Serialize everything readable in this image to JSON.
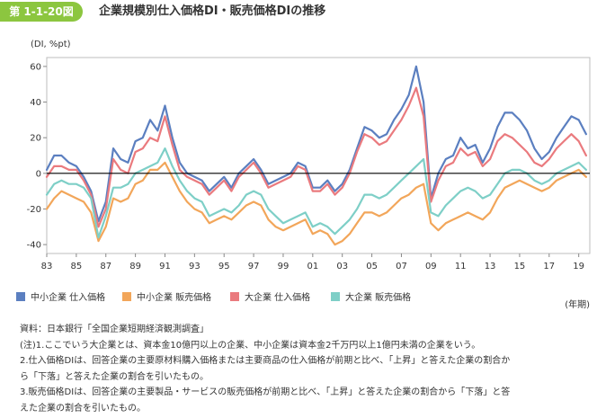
{
  "header": {
    "figure_number": "第 1-1-20図",
    "title": "企業規模別仕入価格DI・販売価格DIの推移"
  },
  "unit_label": "(DI, %pt)",
  "x_unit_label": "(年期)",
  "colors": {
    "sme_input": "#5b7fc0",
    "sme_sales": "#f2a65a",
    "large_input": "#ea7a7e",
    "large_sales": "#7ecfc7",
    "header_bg": "#8cc63f"
  },
  "chart_data": {
    "type": "line",
    "title": "企業規模別仕入価格DI・販売価格DIの推移",
    "ylabel": "(DI, %pt)",
    "xlabel": "(年期)",
    "ylim": [
      -45,
      65
    ],
    "xlim": [
      1983,
      2019.75
    ],
    "yticks": [
      -40,
      -20,
      0,
      20,
      40,
      60
    ],
    "xtick_values": [
      1983,
      1985,
      1987,
      1989,
      1991,
      1993,
      1995,
      1997,
      1999,
      2001,
      2003,
      2005,
      2007,
      2009,
      2011,
      2013,
      2015,
      2017,
      2019
    ],
    "xtick_labels": [
      "83",
      "85",
      "87",
      "89",
      "91",
      "93",
      "95",
      "97",
      "99",
      "01",
      "03",
      "05",
      "07",
      "09",
      "11",
      "13",
      "15",
      "17",
      "19"
    ],
    "grid": false,
    "legend_position": "bottom",
    "x": [
      1983.0,
      1983.5,
      1984.0,
      1984.5,
      1985.0,
      1985.5,
      1986.0,
      1986.5,
      1987.0,
      1987.5,
      1988.0,
      1988.5,
      1989.0,
      1989.5,
      1990.0,
      1990.5,
      1991.0,
      1991.5,
      1992.0,
      1992.5,
      1993.0,
      1993.5,
      1994.0,
      1994.5,
      1995.0,
      1995.5,
      1996.0,
      1996.5,
      1997.0,
      1997.5,
      1998.0,
      1998.5,
      1999.0,
      1999.5,
      2000.0,
      2000.5,
      2001.0,
      2001.5,
      2002.0,
      2002.5,
      2003.0,
      2003.5,
      2004.0,
      2004.5,
      2005.0,
      2005.5,
      2006.0,
      2006.5,
      2007.0,
      2007.5,
      2008.0,
      2008.5,
      2009.0,
      2009.5,
      2010.0,
      2010.5,
      2011.0,
      2011.5,
      2012.0,
      2012.5,
      2013.0,
      2013.5,
      2014.0,
      2014.5,
      2015.0,
      2015.5,
      2016.0,
      2016.5,
      2017.0,
      2017.5,
      2018.0,
      2018.5,
      2019.0,
      2019.5
    ],
    "series": [
      {
        "name": "中小企業 仕入価格",
        "color_key": "sme_input",
        "values": [
          2,
          10,
          10,
          6,
          4,
          -2,
          -10,
          -27,
          -16,
          14,
          8,
          6,
          18,
          20,
          30,
          24,
          38,
          20,
          6,
          0,
          -2,
          -4,
          -10,
          -6,
          -2,
          -8,
          0,
          4,
          8,
          2,
          -6,
          -4,
          -2,
          0,
          6,
          4,
          -8,
          -8,
          -4,
          -10,
          -6,
          2,
          14,
          26,
          24,
          20,
          22,
          30,
          36,
          44,
          60,
          40,
          -14,
          0,
          8,
          10,
          20,
          14,
          16,
          6,
          14,
          26,
          34,
          34,
          30,
          24,
          14,
          8,
          12,
          20,
          26,
          32,
          30,
          22
        ]
      },
      {
        "name": "中小企業 販売価格",
        "color_key": "sme_sales",
        "values": [
          -20,
          -14,
          -10,
          -12,
          -14,
          -16,
          -22,
          -38,
          -30,
          -14,
          -16,
          -14,
          -6,
          -4,
          2,
          2,
          6,
          -2,
          -10,
          -16,
          -20,
          -22,
          -28,
          -26,
          -24,
          -26,
          -22,
          -18,
          -16,
          -18,
          -26,
          -30,
          -32,
          -30,
          -28,
          -26,
          -34,
          -32,
          -34,
          -40,
          -38,
          -34,
          -28,
          -22,
          -22,
          -24,
          -22,
          -18,
          -14,
          -12,
          -8,
          -6,
          -28,
          -32,
          -28,
          -26,
          -24,
          -22,
          -24,
          -26,
          -22,
          -14,
          -8,
          -6,
          -4,
          -6,
          -8,
          -10,
          -8,
          -4,
          -2,
          0,
          2,
          -2
        ]
      },
      {
        "name": "大企業 仕入価格",
        "color_key": "large_input",
        "values": [
          -2,
          4,
          4,
          2,
          2,
          -4,
          -12,
          -30,
          -20,
          8,
          2,
          0,
          12,
          14,
          20,
          18,
          32,
          16,
          2,
          -2,
          -4,
          -6,
          -12,
          -8,
          -4,
          -10,
          -2,
          2,
          6,
          0,
          -8,
          -6,
          -4,
          -2,
          4,
          2,
          -10,
          -10,
          -6,
          -12,
          -8,
          0,
          12,
          22,
          20,
          16,
          18,
          24,
          30,
          38,
          48,
          32,
          -16,
          -4,
          4,
          6,
          14,
          10,
          12,
          4,
          8,
          18,
          22,
          20,
          16,
          12,
          6,
          4,
          8,
          14,
          18,
          22,
          18,
          10
        ]
      },
      {
        "name": "大企業 販売価格",
        "color_key": "large_sales",
        "values": [
          -12,
          -6,
          -4,
          -6,
          -6,
          -8,
          -14,
          -36,
          -24,
          -8,
          -8,
          -6,
          0,
          2,
          4,
          6,
          14,
          4,
          -4,
          -10,
          -14,
          -16,
          -24,
          -22,
          -20,
          -22,
          -18,
          -12,
          -10,
          -12,
          -20,
          -24,
          -28,
          -26,
          -24,
          -22,
          -30,
          -28,
          -30,
          -34,
          -30,
          -26,
          -20,
          -12,
          -12,
          -14,
          -12,
          -8,
          -4,
          0,
          4,
          8,
          -22,
          -24,
          -18,
          -14,
          -10,
          -8,
          -10,
          -14,
          -12,
          -6,
          0,
          2,
          2,
          0,
          -4,
          -6,
          -4,
          0,
          2,
          4,
          6,
          2
        ]
      }
    ]
  },
  "legend": [
    {
      "label": "中小企業 仕入価格",
      "color_key": "sme_input"
    },
    {
      "label": "中小企業 販売価格",
      "color_key": "sme_sales"
    },
    {
      "label": "大企業 仕入価格",
      "color_key": "large_input"
    },
    {
      "label": "大企業 販売価格",
      "color_key": "large_sales"
    }
  ],
  "notes": [
    "資料：日本銀行「全国企業短期経済観測調査」",
    "(注)1.ここでいう大企業とは、資本金10億円以上の企業、中小企業は資本金2千万円以上1億円未満の企業をいう。",
    "2.仕入価格DIは、回答企業の主要原材料購入価格または主要商品の仕入価格が前期と比べ、「上昇」と答えた企業の割合か",
    "ら「下落」と答えた企業の割合を引いたもの。",
    "3.販売価格DIは、回答企業の主要製品・サービスの販売価格が前期と比べ、「上昇」と答えた企業の割合から「下落」と答",
    "えた企業の割合を引いたもの。"
  ]
}
